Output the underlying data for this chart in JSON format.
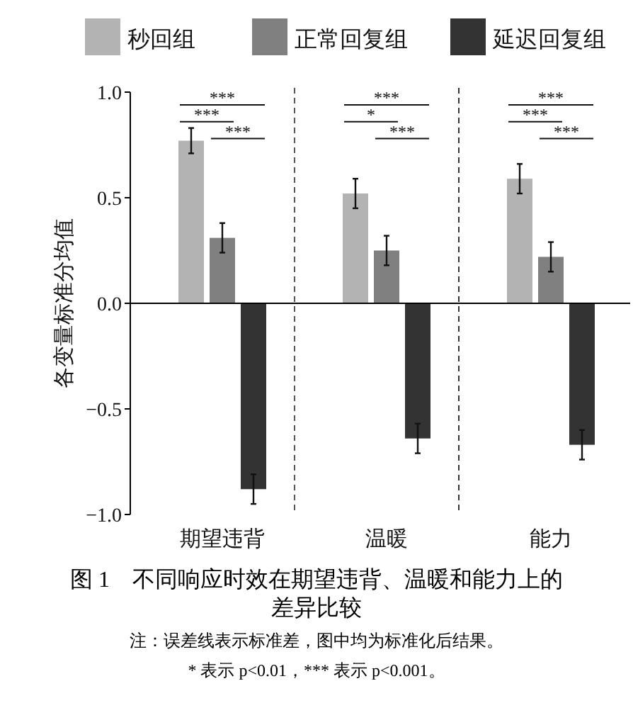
{
  "chart_data": {
    "type": "bar",
    "title": "图 1　不同响应时效在期望违背、温暖和能力上的差异比较",
    "ylabel": "各变量标准分均值",
    "categories": [
      "期望违背",
      "温暖",
      "能力"
    ],
    "series": [
      {
        "name": "秒回组",
        "color": "#b3b3b3",
        "values": [
          0.77,
          0.52,
          0.59
        ],
        "errors": [
          0.06,
          0.07,
          0.07
        ]
      },
      {
        "name": "正常回复组",
        "color": "#808080",
        "values": [
          0.31,
          0.25,
          0.22
        ],
        "errors": [
          0.07,
          0.07,
          0.07
        ]
      },
      {
        "name": "延迟回复组",
        "color": "#333333",
        "values": [
          -0.88,
          -0.64,
          -0.67
        ],
        "errors": [
          0.07,
          0.07,
          0.07
        ]
      }
    ],
    "ylim": [
      -1,
      1
    ],
    "yticks": [
      {
        "value": -1,
        "label": "−1.0"
      },
      {
        "value": -0.5,
        "label": "−0.5"
      },
      {
        "value": 0,
        "label": "0.0"
      },
      {
        "value": 0.5,
        "label": "0.5"
      },
      {
        "value": 1,
        "label": "1.0"
      }
    ],
    "legend": "top",
    "annotations": [
      "***",
      "***",
      "***",
      "***",
      "*",
      "***",
      "***",
      "***",
      "***",
      "注：误差线表示标准差，图中均为标准化后结果。",
      "* 表示 p<0.01，*** 表示 p<0.001。"
    ]
  }
}
